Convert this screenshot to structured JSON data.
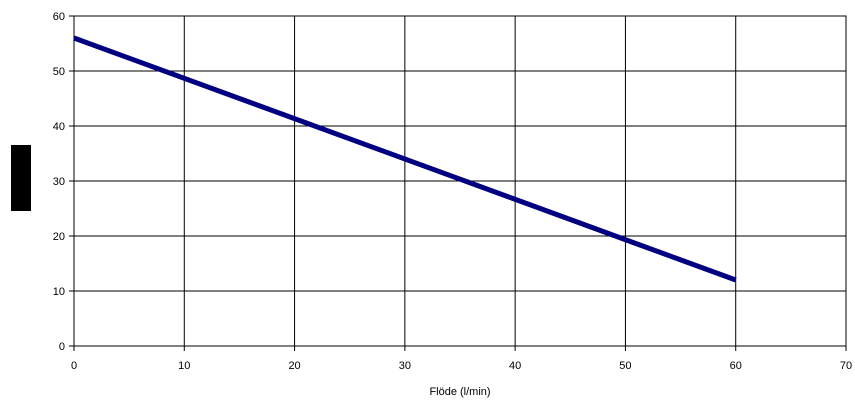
{
  "chart_data": {
    "type": "line",
    "title": "",
    "xlabel": "Flöde (l/min)",
    "ylabel": "",
    "xlim": [
      0,
      70
    ],
    "ylim": [
      0,
      60
    ],
    "x_ticks": [
      0,
      10,
      20,
      30,
      40,
      50,
      60,
      70
    ],
    "y_ticks": [
      0,
      10,
      20,
      30,
      40,
      50,
      60
    ],
    "grid": true,
    "legend": "none",
    "series": [
      {
        "color": "#000080",
        "x": [
          0,
          60
        ],
        "y": [
          56,
          12
        ]
      }
    ]
  }
}
